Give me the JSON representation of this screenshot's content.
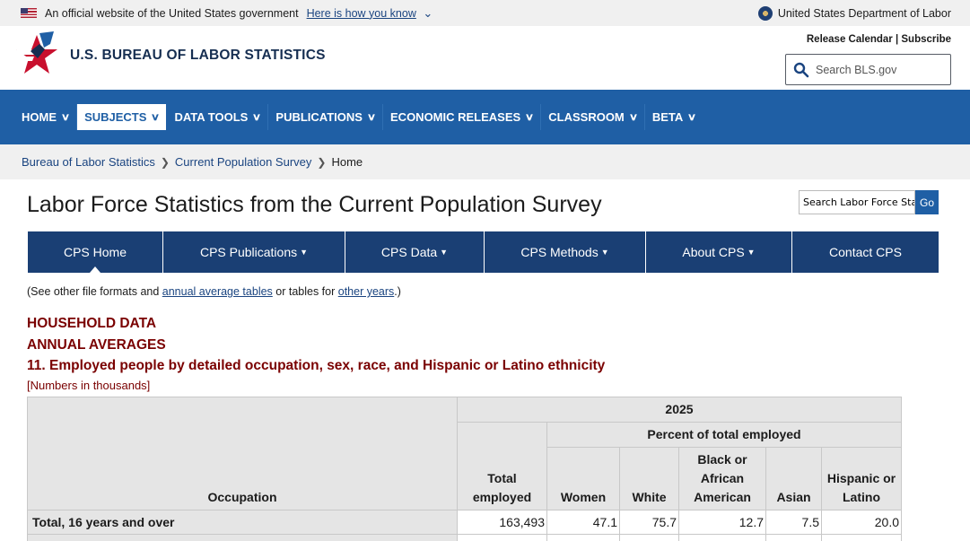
{
  "gov_banner": {
    "text": "An official website of the United States government",
    "link": "Here is how you know",
    "dept": "United States Department of Labor"
  },
  "header": {
    "agency": "U.S. BUREAU OF LABOR STATISTICS",
    "release_calendar": "Release Calendar",
    "separator": "|",
    "subscribe": "Subscribe",
    "search_placeholder": "Search BLS.gov"
  },
  "nav": {
    "items": [
      {
        "label": "HOME"
      },
      {
        "label": "SUBJECTS"
      },
      {
        "label": "DATA TOOLS"
      },
      {
        "label": "PUBLICATIONS"
      },
      {
        "label": "ECONOMIC RELEASES"
      },
      {
        "label": "CLASSROOM"
      },
      {
        "label": "BETA"
      }
    ]
  },
  "breadcrumb": [
    "Bureau of Labor Statistics",
    "Current Population Survey",
    "Home"
  ],
  "page": {
    "title": "Labor Force Statistics from the Current Population Survey",
    "site_search_value": "Search Labor Force Statistics",
    "go_label": "Go"
  },
  "cps_nav": [
    {
      "label": "CPS Home"
    },
    {
      "label": "CPS Publications"
    },
    {
      "label": "CPS Data"
    },
    {
      "label": "CPS Methods"
    },
    {
      "label": "About CPS"
    },
    {
      "label": "Contact CPS"
    }
  ],
  "note": {
    "prefix": "(See other file formats and ",
    "link1": "annual average tables",
    "middle": " or tables for ",
    "link2": "other years",
    "suffix": ".)"
  },
  "table_heading": {
    "line1": "HOUSEHOLD DATA",
    "line2": "ANNUAL AVERAGES",
    "line3": "11. Employed people by detailed occupation, sex, race, and Hispanic or Latino ethnicity",
    "units": "[Numbers in thousands]"
  },
  "table": {
    "year": "2025",
    "percent_group": "Percent of total employed",
    "col_occupation": "Occupation",
    "col_total": "Total employed",
    "col_women": "Women",
    "col_white": "White",
    "col_black": "Black or African American",
    "col_asian": "Asian",
    "col_hispanic": "Hispanic or Latino",
    "rows": [
      {
        "occupation": "Total, 16 years and over",
        "total": "163,493",
        "women": "47.1",
        "white": "75.7",
        "black": "12.7",
        "asian": "7.5",
        "hispanic": "20.0"
      }
    ]
  }
}
